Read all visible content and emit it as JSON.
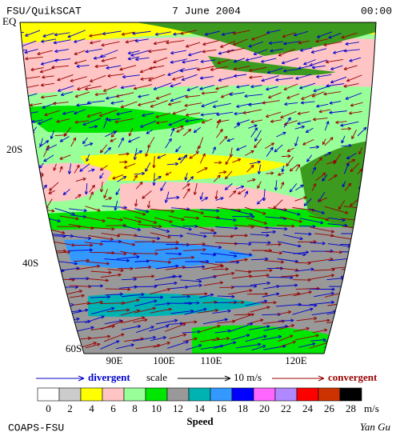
{
  "header": {
    "left": "FSU/QuikSCAT",
    "center": "7 June 2004",
    "right": "00:00"
  },
  "lat_labels": [
    "EQ",
    "20S",
    "40S",
    "60S"
  ],
  "lon_labels": [
    "90E",
    "100E",
    "110E",
    "120E"
  ],
  "scale": {
    "divergent": "divergent",
    "scale": "scale",
    "length": "10 m/s",
    "convergent": "convergent"
  },
  "colorbar": {
    "ticks": [
      0,
      2,
      4,
      6,
      8,
      10,
      12,
      14,
      16,
      18,
      20,
      22,
      24,
      26,
      28
    ],
    "colors": [
      "#ffffff",
      "#cccccc",
      "#ffff00",
      "#ffc4c4",
      "#99ff99",
      "#00e600",
      "#999999",
      "#00b3b3",
      "#3399ff",
      "#0000ff",
      "#ff66ff",
      "#b088ff",
      "#ff0000",
      "#cc3300",
      "#000000"
    ],
    "unit": "m/s",
    "label": "Speed"
  },
  "footer": {
    "left": "COAPS-FSU",
    "right": "Yan Gu"
  }
}
